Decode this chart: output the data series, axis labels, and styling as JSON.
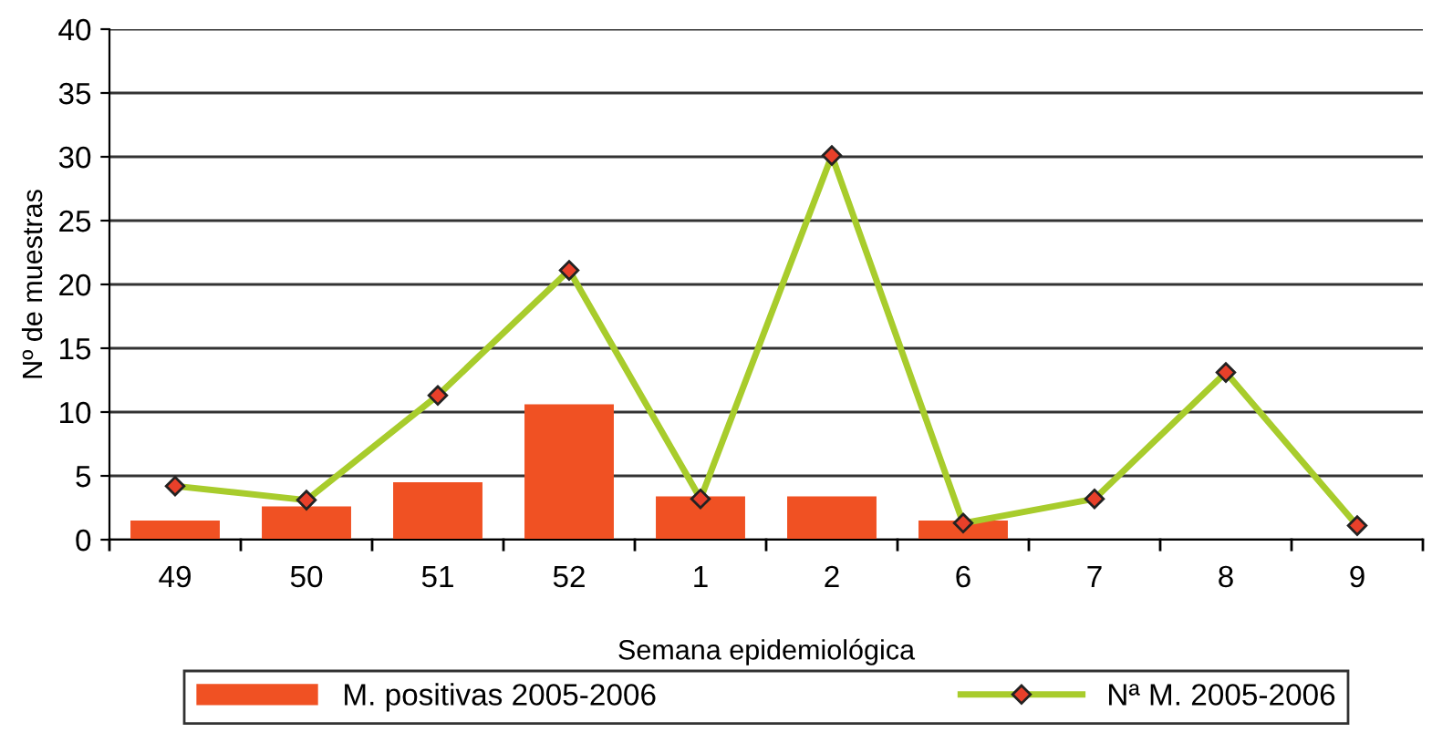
{
  "chart_data": {
    "type": "bar",
    "xlabel": "Semana epidemiológica",
    "ylabel": "Nº de muestras",
    "categories": [
      "49",
      "50",
      "51",
      "52",
      "1",
      "2",
      "6",
      "7",
      "8",
      "9"
    ],
    "series": [
      {
        "name": "M. positivas 2005-2006",
        "color": "#f05123",
        "values": [
          1.5,
          2.6,
          4.5,
          10.6,
          3.4,
          3.4,
          1.5,
          null,
          null,
          null
        ]
      },
      {
        "name": "Nª M. 2005-2006",
        "type": "line",
        "color": "#a8cc2c",
        "marker": "diamond",
        "values": [
          4.2,
          3.1,
          11.3,
          21.1,
          3.2,
          30.1,
          1.3,
          3.2,
          13.1,
          1.1
        ]
      }
    ],
    "ylim": [
      0,
      40
    ],
    "yticks": [
      0,
      5,
      10,
      15,
      20,
      25,
      30,
      35,
      40
    ],
    "grid": "y",
    "legend": "bottom"
  }
}
